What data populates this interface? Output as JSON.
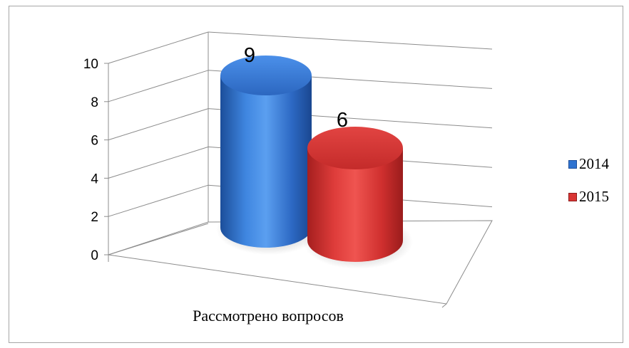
{
  "chart_data": {
    "type": "bar",
    "style": "3d-cylinder",
    "categories": [
      "Рассмотрено вопросов"
    ],
    "series": [
      {
        "name": "2014",
        "values": [
          9
        ],
        "color": "#2f73d0"
      },
      {
        "name": "2015",
        "values": [
          6
        ],
        "color": "#d93534"
      }
    ],
    "yticks": [
      "0",
      "2",
      "4",
      "6",
      "8",
      "10"
    ],
    "ylim": [
      0,
      10
    ],
    "grid": true,
    "legend_position": "right"
  }
}
